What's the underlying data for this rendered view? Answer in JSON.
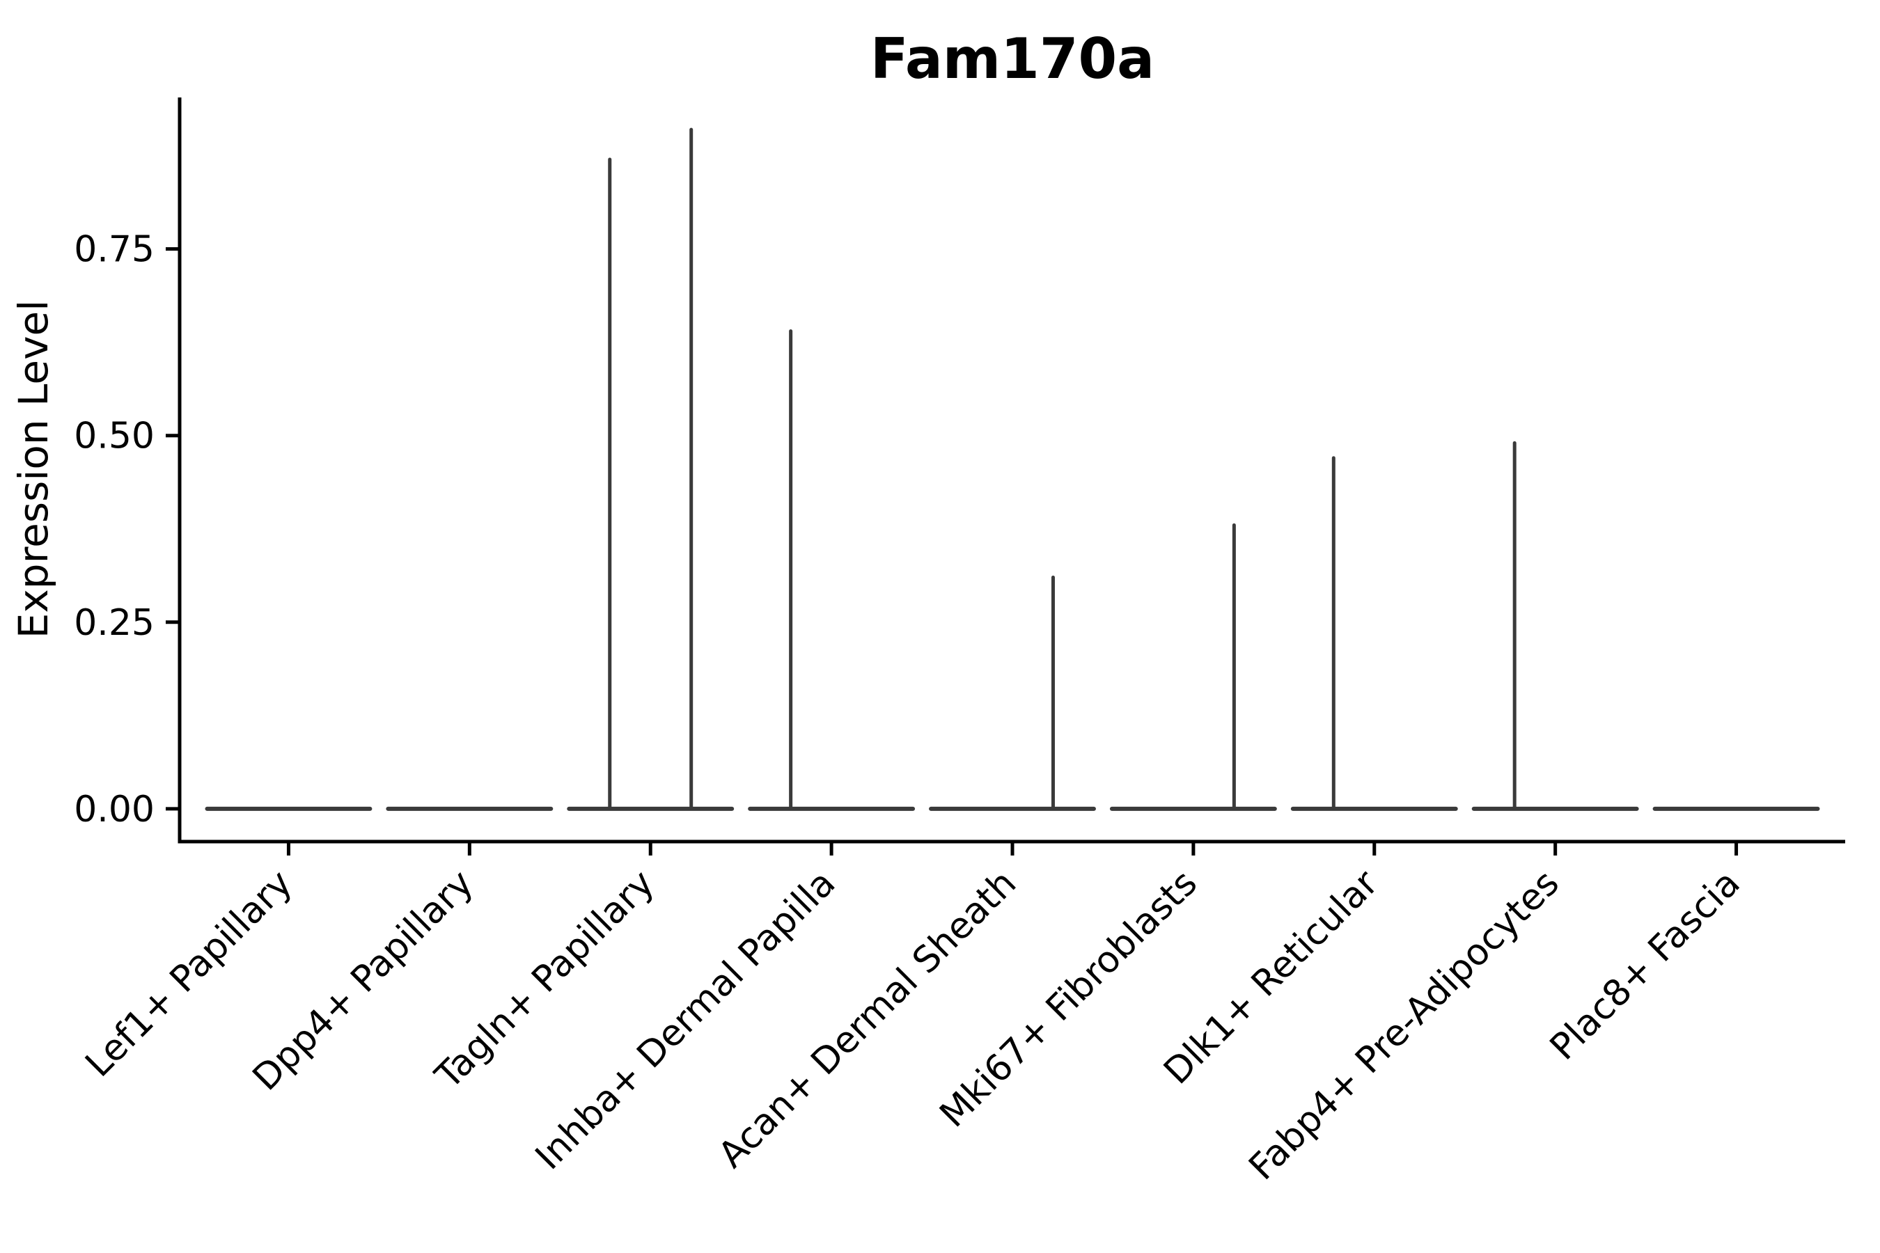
{
  "chart_data": {
    "type": "violin",
    "title": "Fam170a",
    "xlabel": "",
    "ylabel": "Expression Level",
    "categories": [
      "Lef1+ Papillary",
      "Dpp4+ Papillary",
      "Tagln+ Papillary",
      "Inhba+ Dermal Papilla",
      "Acan+ Dermal Sheath",
      "Mki67+ Fibroblasts",
      "Dlk1+ Reticular",
      "Fabp4+ Pre-Adipocytes",
      "Plac8+ Fascia"
    ],
    "ylim": [
      -0.044,
      0.953
    ],
    "ytick_values": [
      0,
      0.25,
      0.5,
      0.75
    ],
    "ytick_labels": [
      "0.00",
      "0.25",
      "0.50",
      "0.75"
    ],
    "grid": false,
    "legend": "none",
    "x_tick_rotation": -45,
    "violins": [
      {
        "category": "Lef1+ Papillary",
        "base_value": 0,
        "spikes": []
      },
      {
        "category": "Dpp4+ Papillary",
        "base_value": 0,
        "spikes": []
      },
      {
        "category": "Tagln+ Papillary",
        "base_value": 0,
        "spikes": [
          {
            "offset": -0.225,
            "value": 0.87
          },
          {
            "offset": 0.225,
            "value": 0.91
          }
        ]
      },
      {
        "category": "Inhba+ Dermal Papilla",
        "base_value": 0,
        "spikes": [
          {
            "offset": -0.225,
            "value": 0.64
          }
        ]
      },
      {
        "category": "Acan+ Dermal Sheath",
        "base_value": 0,
        "spikes": [
          {
            "offset": 0.225,
            "value": 0.31
          }
        ]
      },
      {
        "category": "Mki67+ Fibroblasts",
        "base_value": 0,
        "spikes": [
          {
            "offset": 0.225,
            "value": 0.38
          }
        ]
      },
      {
        "category": "Dlk1+ Reticular",
        "base_value": 0,
        "spikes": [
          {
            "offset": -0.225,
            "value": 0.47
          }
        ]
      },
      {
        "category": "Fabp4+ Pre-Adipocytes",
        "base_value": 0,
        "spikes": [
          {
            "offset": -0.225,
            "value": 0.49
          }
        ]
      },
      {
        "category": "Plac8+ Fascia",
        "base_value": 0,
        "spikes": []
      }
    ],
    "violin_relative_width": 0.9,
    "colors": {
      "violin_stroke": "#3a3a3a",
      "axis": "#000000",
      "text": "#000000",
      "background": "#ffffff"
    }
  }
}
